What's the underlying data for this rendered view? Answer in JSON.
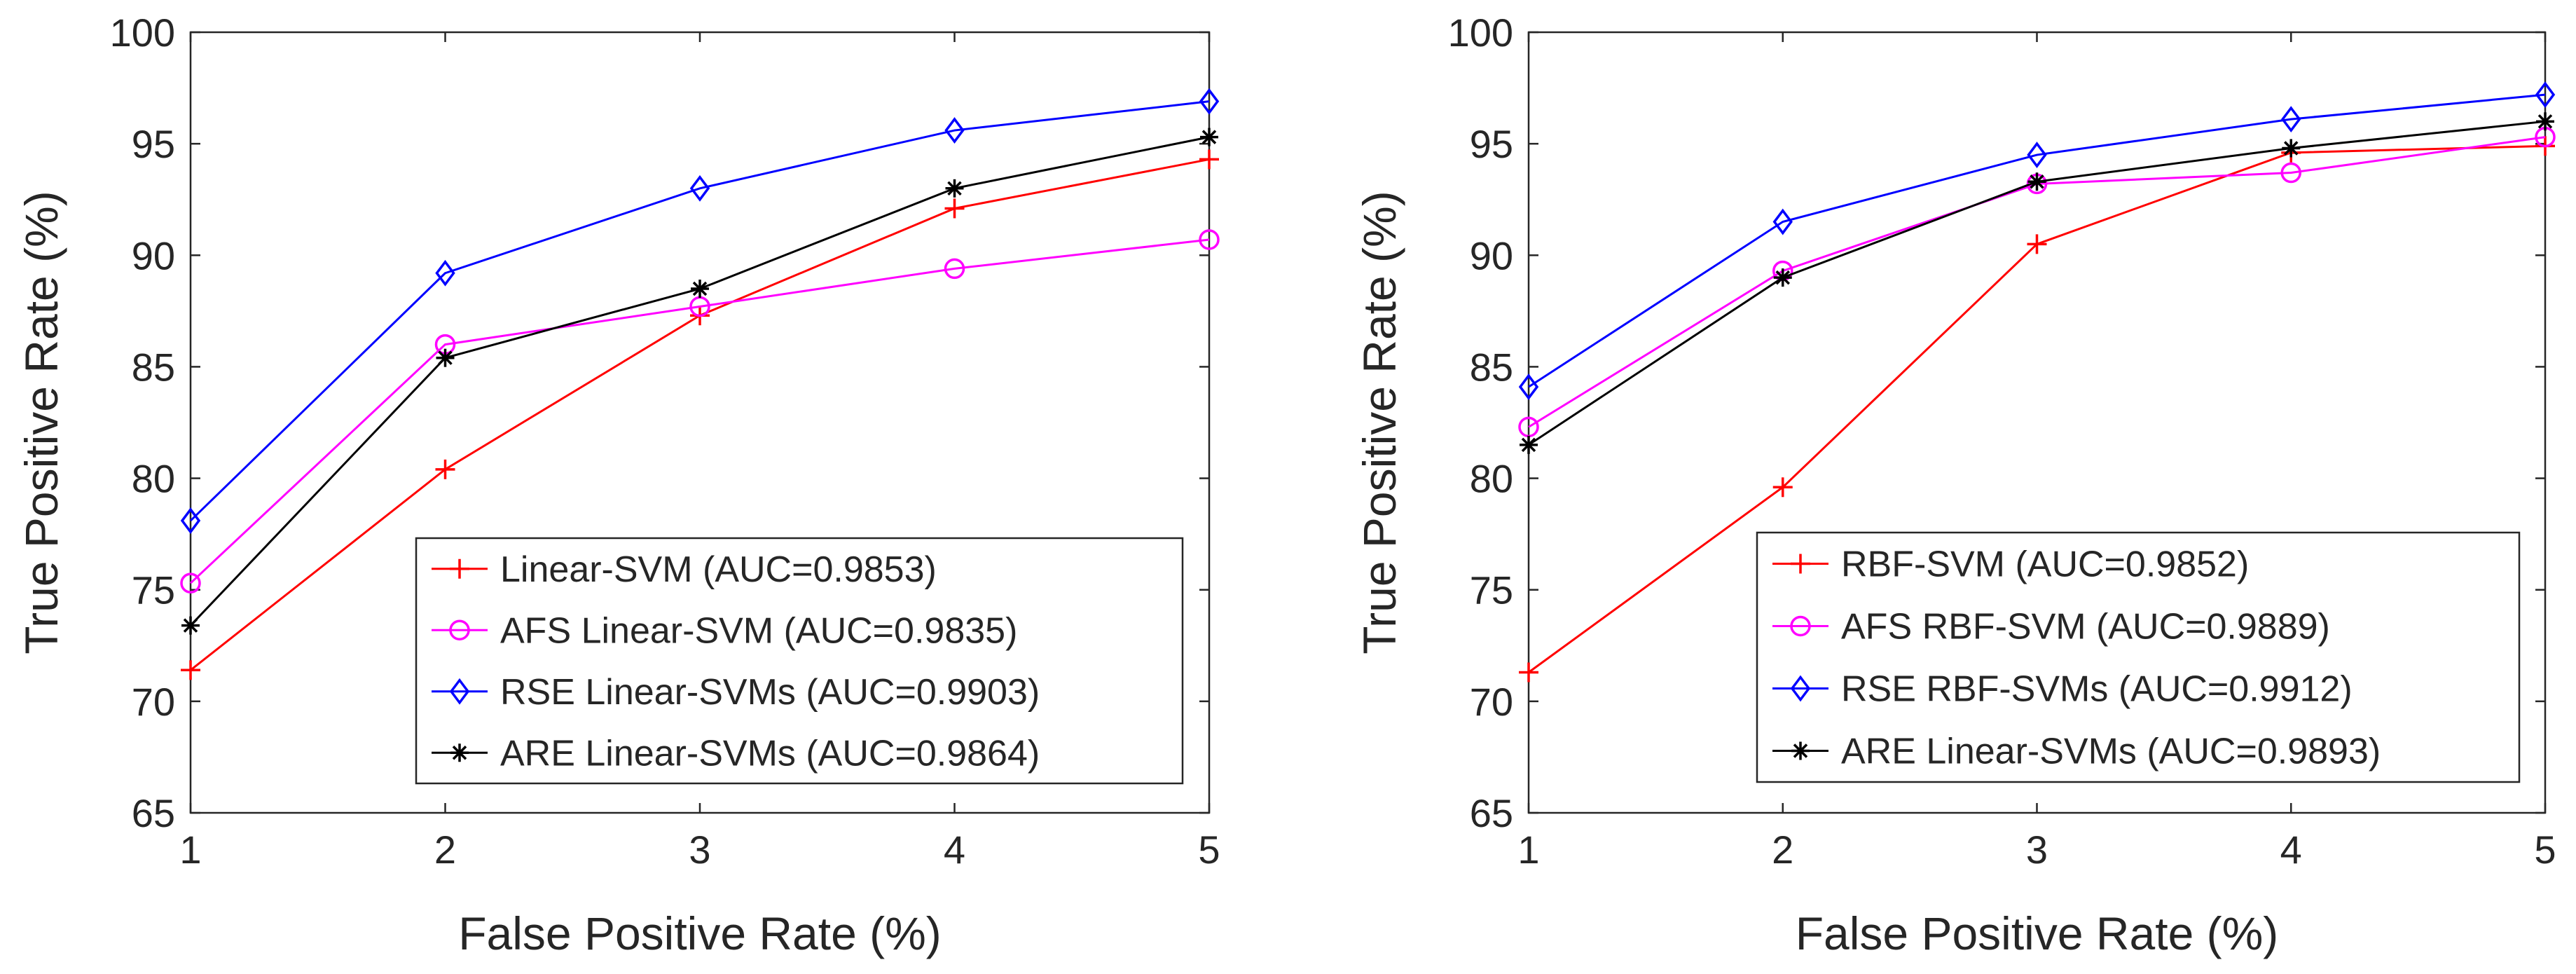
{
  "chart_data": [
    {
      "type": "line",
      "xlabel": "False Positive Rate (%)",
      "ylabel": "True Positive Rate (%)",
      "xlim": [
        1,
        5
      ],
      "ylim": [
        65,
        100
      ],
      "xticks": [
        1,
        2,
        3,
        4,
        5
      ],
      "yticks": [
        65,
        70,
        75,
        80,
        85,
        90,
        95,
        100
      ],
      "grid": false,
      "legend_position": "bottom-right",
      "x": [
        1,
        2,
        3,
        4,
        5
      ],
      "series": [
        {
          "name": "Linear-SVM (AUC=0.9853)",
          "values": [
            71.4,
            80.4,
            87.3,
            92.1,
            94.3
          ],
          "color": "#ff0000",
          "marker": "plus"
        },
        {
          "name": "AFS Linear-SVM (AUC=0.9835)",
          "values": [
            75.3,
            86.0,
            87.7,
            89.4,
            90.7
          ],
          "color": "#ff00ff",
          "marker": "circle"
        },
        {
          "name": "RSE Linear-SVMs (AUC=0.9903)",
          "values": [
            78.1,
            89.2,
            93.0,
            95.6,
            96.9
          ],
          "color": "#0000ff",
          "marker": "diamond"
        },
        {
          "name": "ARE Linear-SVMs (AUC=0.9864)",
          "values": [
            73.4,
            85.4,
            88.5,
            93.0,
            95.3
          ],
          "color": "#000000",
          "marker": "star"
        }
      ]
    },
    {
      "type": "line",
      "xlabel": "False Positive Rate (%)",
      "ylabel": "True Positive Rate (%)",
      "xlim": [
        1,
        5
      ],
      "ylim": [
        65,
        100
      ],
      "xticks": [
        1,
        2,
        3,
        4,
        5
      ],
      "yticks": [
        65,
        70,
        75,
        80,
        85,
        90,
        95,
        100
      ],
      "grid": false,
      "legend_position": "bottom-right",
      "x": [
        1,
        2,
        3,
        4,
        5
      ],
      "series": [
        {
          "name": "RBF-SVM (AUC=0.9852)",
          "values": [
            71.3,
            79.6,
            90.5,
            94.6,
            94.9
          ],
          "color": "#ff0000",
          "marker": "plus"
        },
        {
          "name": "AFS RBF-SVM (AUC=0.9889)",
          "values": [
            82.3,
            89.3,
            93.2,
            93.7,
            95.3
          ],
          "color": "#ff00ff",
          "marker": "circle"
        },
        {
          "name": "RSE RBF-SVMs (AUC=0.9912)",
          "values": [
            84.1,
            91.5,
            94.5,
            96.1,
            97.2
          ],
          "color": "#0000ff",
          "marker": "diamond"
        },
        {
          "name": "ARE Linear-SVMs (AUC=0.9893)",
          "values": [
            81.5,
            89.0,
            93.3,
            94.8,
            96.0
          ],
          "color": "#000000",
          "marker": "star"
        }
      ]
    }
  ]
}
